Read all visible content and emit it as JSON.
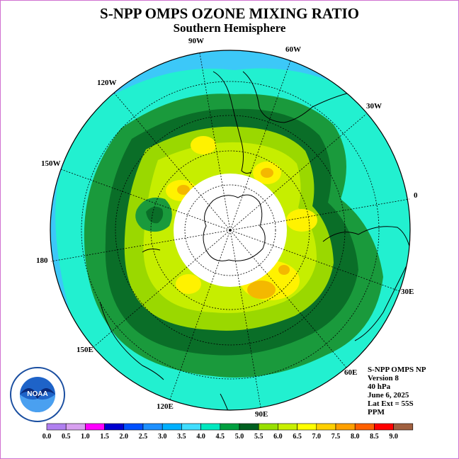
{
  "title": "S-NPP OMPS OZONE MIXING RATIO",
  "subtitle": "Southern Hemisphere",
  "longitude_labels": [
    "90W",
    "60W",
    "30W",
    "0",
    "30E",
    "60E",
    "90E",
    "120E",
    "150E",
    "180",
    "150W",
    "120W"
  ],
  "info": {
    "instrument": "S-NPP OMPS NP",
    "version": "Version 8",
    "level": "40 hPa",
    "date": "June 6, 2025",
    "lat_ext": "Lat Ext = 55S",
    "units": "PPM"
  },
  "logo_text": "NOAA",
  "colorbar": {
    "ticks": [
      "0.0",
      "0.5",
      "1.0",
      "1.5",
      "2.0",
      "2.5",
      "3.0",
      "3.5",
      "4.0",
      "4.5",
      "5.0",
      "5.5",
      "6.0",
      "6.5",
      "7.0",
      "7.5",
      "8.0",
      "8.5",
      "9.0"
    ],
    "colors": [
      "#b080f0",
      "#d8a0f0",
      "#ff00ff",
      "#0000d0",
      "#0050ff",
      "#1e90ff",
      "#00b0ff",
      "#40ddff",
      "#00e8c0",
      "#00a040",
      "#006020",
      "#98e000",
      "#c8f000",
      "#ffff00",
      "#ffd000",
      "#ffa000",
      "#ff6000",
      "#ff0000",
      "#a06040"
    ]
  },
  "field_colors": {
    "level_3_5": "#3cc8f8",
    "level_4_0": "#22f0d0",
    "level_4_5": "#1a9a3c",
    "level_5_0": "#0a6e28",
    "level_5_5": "#9ad800",
    "level_6_0": "#c6ee00",
    "level_6_5": "#fff200",
    "level_7_0": "#f4b800",
    "no_data": "#ffffff"
  }
}
